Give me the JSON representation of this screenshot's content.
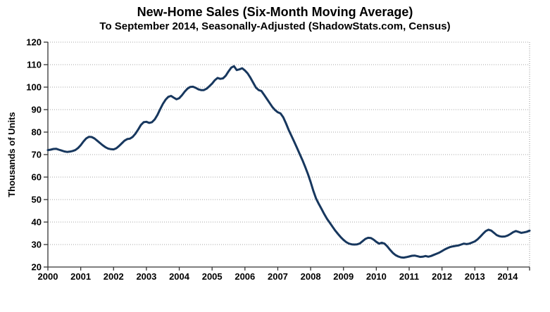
{
  "chart_data": {
    "type": "line",
    "title": "New-Home Sales (Six-Month Moving Average)",
    "subtitle": "To September 2014, Seasonally-Adjusted (ShadowStats.com, Census)",
    "xlabel": "",
    "ylabel": "Thousands of Units",
    "ylim": [
      20,
      120
    ],
    "y_ticks": [
      20,
      30,
      40,
      50,
      60,
      70,
      80,
      90,
      100,
      110,
      120
    ],
    "x_tick_labels": [
      "2000",
      "2001",
      "2002",
      "2003",
      "2004",
      "2005",
      "2006",
      "2007",
      "2008",
      "2009",
      "2010",
      "2011",
      "2012",
      "2013",
      "2014"
    ],
    "x_range": "January 2000 to September 2014, monthly",
    "grid": true,
    "legend_position": "none",
    "line_color": "#17375E",
    "series": [
      {
        "name": "New-Home Sales (Six-Month Moving Average), Thousands of Units",
        "start": "2000-01",
        "end": "2014-09",
        "monthly_values": [
          72.0,
          72.2,
          72.5,
          72.6,
          72.2,
          71.8,
          71.4,
          71.2,
          71.3,
          71.6,
          72.0,
          72.9,
          74.2,
          75.8,
          77.2,
          77.9,
          77.8,
          77.2,
          76.2,
          75.2,
          74.2,
          73.3,
          72.7,
          72.4,
          72.3,
          72.8,
          73.8,
          75.0,
          76.2,
          76.9,
          77.1,
          77.9,
          79.3,
          81.2,
          83.2,
          84.4,
          84.6,
          84.1,
          84.4,
          85.6,
          87.6,
          90.1,
          92.5,
          94.4,
          95.7,
          96.1,
          95.3,
          94.6,
          95.1,
          96.4,
          98.0,
          99.3,
          100.1,
          100.2,
          99.7,
          99.0,
          98.7,
          98.7,
          99.3,
          100.4,
          101.6,
          103.1,
          104.1,
          103.7,
          103.9,
          105.1,
          107.0,
          108.7,
          109.3,
          107.6,
          107.9,
          108.4,
          107.4,
          106.1,
          104.2,
          102.0,
          99.8,
          98.7,
          98.3,
          96.6,
          94.8,
          93.0,
          91.2,
          89.8,
          88.8,
          88.3,
          86.6,
          83.9,
          80.9,
          78.3,
          75.7,
          73.0,
          70.3,
          67.6,
          64.6,
          61.4,
          57.8,
          53.8,
          50.4,
          48.0,
          45.8,
          43.5,
          41.4,
          39.7,
          37.9,
          36.2,
          34.7,
          33.3,
          32.1,
          31.1,
          30.4,
          30.1,
          30.0,
          30.1,
          30.5,
          31.5,
          32.5,
          33.0,
          32.9,
          32.2,
          31.2,
          30.4,
          30.8,
          30.4,
          29.2,
          27.7,
          26.3,
          25.3,
          24.7,
          24.3,
          24.2,
          24.4,
          24.7,
          25.0,
          25.1,
          24.8,
          24.5,
          24.6,
          24.9,
          24.6,
          24.9,
          25.4,
          25.9,
          26.4,
          27.1,
          27.8,
          28.4,
          28.9,
          29.2,
          29.4,
          29.6,
          30.0,
          30.4,
          30.2,
          30.4,
          30.9,
          31.4,
          32.3,
          33.5,
          34.8,
          36.0,
          36.6,
          36.2,
          35.2,
          34.2,
          33.7,
          33.5,
          33.6,
          34.0,
          34.7,
          35.5,
          36.0,
          35.6,
          35.2,
          35.4,
          35.7,
          36.2
        ]
      }
    ]
  }
}
